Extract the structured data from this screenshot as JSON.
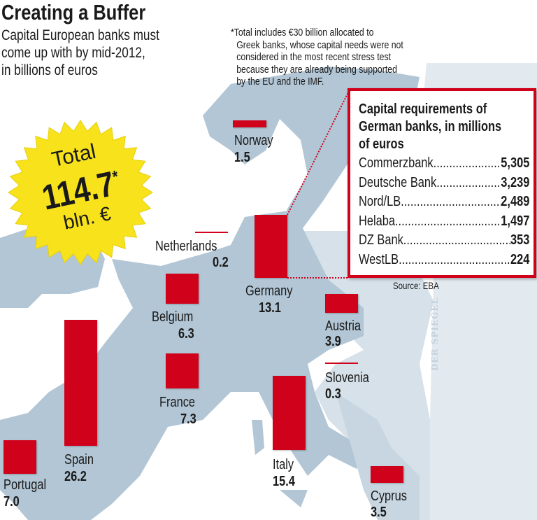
{
  "header": {
    "title": "Creating a Buffer",
    "subtitle_lines": [
      "Capital European banks must",
      "come up with by mid-2012,",
      "in billions of euros"
    ]
  },
  "footnote_lines": [
    "*Total includes €30 billion allocated to",
    "Greek banks, whose capital needs were not",
    "considered in the most recent stress test",
    "because they are already being supported",
    "by the EU and the IMF."
  ],
  "total_badge": {
    "label": "Total",
    "value": "114.7",
    "asterisk": "*",
    "unit": "bln. €"
  },
  "inset": {
    "title_lines": [
      "Capital requirements of",
      "German banks, in millions",
      "of euros"
    ],
    "rows": [
      {
        "name": "Commerzbank",
        "value": "5,305"
      },
      {
        "name": "Deutsche Bank",
        "value": "3,239"
      },
      {
        "name": "Nord/LB",
        "value": "2,489"
      },
      {
        "name": "Helaba",
        "value": "1,497"
      },
      {
        "name": "DZ Bank",
        "value": "353"
      },
      {
        "name": "WestLB",
        "value": "224"
      }
    ]
  },
  "source": "Source: EBA",
  "watermark": "DER SPIEGEL",
  "colors": {
    "bar": "#d0021b",
    "land": "#b2c6d5",
    "land_light": "#d6e1e9",
    "badge": "#f7e21b"
  },
  "chart_data": {
    "type": "bar",
    "title": "Creating a Buffer",
    "unit": "billions of euros",
    "categories": [
      "Norway",
      "Netherlands",
      "Germany",
      "Belgium",
      "Austria",
      "Slovenia",
      "France",
      "Spain",
      "Portugal",
      "Italy",
      "Cyprus"
    ],
    "values": [
      1.5,
      0.2,
      13.1,
      6.3,
      3.9,
      0.3,
      7.3,
      26.2,
      7.0,
      15.4,
      3.5
    ],
    "value_labels": [
      "1.5",
      "0.2",
      "13.1",
      "6.3",
      "3.9",
      "0.3",
      "7.3",
      "26.2",
      "7.0",
      "15.4",
      "3.5"
    ]
  }
}
